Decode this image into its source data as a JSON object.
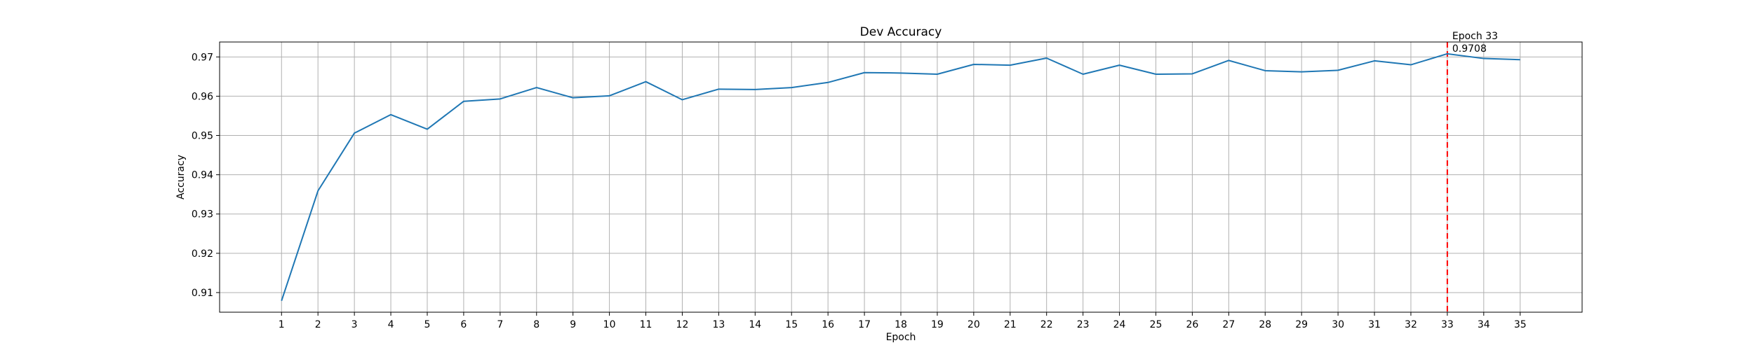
{
  "chart_data": {
    "type": "line",
    "title": "Dev Accuracy",
    "xlabel": "Epoch",
    "ylabel": "Accuracy",
    "x": [
      1,
      2,
      3,
      4,
      5,
      6,
      7,
      8,
      9,
      10,
      11,
      12,
      13,
      14,
      15,
      16,
      17,
      18,
      19,
      20,
      21,
      22,
      23,
      24,
      25,
      26,
      27,
      28,
      29,
      30,
      31,
      32,
      33,
      34,
      35
    ],
    "x_ticks": [
      "1",
      "2",
      "3",
      "4",
      "5",
      "6",
      "7",
      "8",
      "9",
      "10",
      "11",
      "12",
      "13",
      "14",
      "15",
      "16",
      "17",
      "18",
      "19",
      "20",
      "21",
      "22",
      "23",
      "24",
      "25",
      "26",
      "27",
      "28",
      "29",
      "30",
      "31",
      "32",
      "33",
      "34",
      "35"
    ],
    "series": [
      {
        "values": [
          0.9079,
          0.9359,
          0.9506,
          0.9553,
          0.9516,
          0.9587,
          0.9593,
          0.9622,
          0.9596,
          0.9601,
          0.9637,
          0.9591,
          0.9618,
          0.9617,
          0.9622,
          0.9635,
          0.966,
          0.9659,
          0.9656,
          0.9681,
          0.9679,
          0.9697,
          0.9656,
          0.9679,
          0.9656,
          0.9657,
          0.9691,
          0.9665,
          0.9662,
          0.9666,
          0.969,
          0.968,
          0.9708,
          0.9696,
          0.9693
        ],
        "color": "#1f77b4"
      }
    ],
    "y_ticks": [
      "0.91",
      "0.92",
      "0.93",
      "0.94",
      "0.95",
      "0.96",
      "0.97"
    ],
    "xlim": [
      -0.7,
      36.7
    ],
    "ylim": [
      0.905,
      0.9738
    ],
    "grid": true,
    "marker_line": {
      "x": 33,
      "color": "#ff0000",
      "style": "dashed"
    },
    "annotation": {
      "line1": "Epoch 33",
      "line2": "0.9708"
    }
  }
}
